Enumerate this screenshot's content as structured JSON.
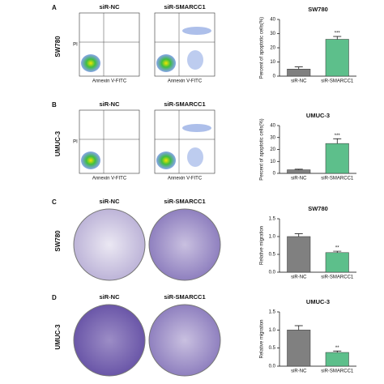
{
  "figure": {
    "panel_labels": [
      "A",
      "B",
      "C",
      "D"
    ],
    "row_labels": [
      "SW780",
      "UMUC-3",
      "SW780",
      "UMUC-3"
    ],
    "column_headers": [
      "siR-NC",
      "siR-SMARCC1"
    ],
    "flow_x_label": "Annexin V-FITC",
    "flow_y_label": "PI"
  },
  "chart_data": [
    {
      "type": "bar",
      "title": "SW780",
      "ylabel": "Percent of apoptotic cells(%)",
      "categories": [
        "siR-NC",
        "siR-SMARCC1"
      ],
      "values": [
        5,
        26
      ],
      "errors": [
        1.5,
        2
      ],
      "colors": [
        "#808080",
        "#5dbf8b"
      ],
      "ylim": [
        0,
        40
      ],
      "yticks": [
        0,
        10,
        20,
        30,
        40
      ],
      "annotation": "***"
    },
    {
      "type": "bar",
      "title": "UMUC-3",
      "ylabel": "Percent of apoptotic cells(%)",
      "categories": [
        "siR-NC",
        "siR-SMARCC1"
      ],
      "values": [
        3,
        25
      ],
      "errors": [
        0.5,
        4
      ],
      "colors": [
        "#808080",
        "#5dbf8b"
      ],
      "ylim": [
        0,
        40
      ],
      "yticks": [
        0,
        10,
        20,
        30,
        40
      ],
      "annotation": "***"
    },
    {
      "type": "bar",
      "title": "SW780",
      "ylabel": "Relative migration",
      "categories": [
        "siR-NC",
        "siR-SMARCC1"
      ],
      "values": [
        1.0,
        0.55
      ],
      "errors": [
        0.08,
        0.04
      ],
      "colors": [
        "#808080",
        "#5dbf8b"
      ],
      "ylim": [
        0,
        1.5
      ],
      "yticks": [
        {
          "value": 0,
          "label": "0.0"
        },
        0.5,
        {
          "value": 1,
          "label": "1.0"
        },
        1.5
      ],
      "annotation": "**"
    },
    {
      "type": "bar",
      "title": "UMUC-3",
      "ylabel": "Relative migration",
      "categories": [
        "siR-NC",
        "siR-SMARCC1"
      ],
      "values": [
        1.0,
        0.38
      ],
      "errors": [
        0.12,
        0.04
      ],
      "colors": [
        "#808080",
        "#5dbf8b"
      ],
      "ylim": [
        0,
        1.5
      ],
      "yticks": [
        {
          "value": 0,
          "label": "0.0"
        },
        0.5,
        {
          "value": 1,
          "label": "1.0"
        },
        1.5
      ],
      "annotation": "**"
    }
  ]
}
